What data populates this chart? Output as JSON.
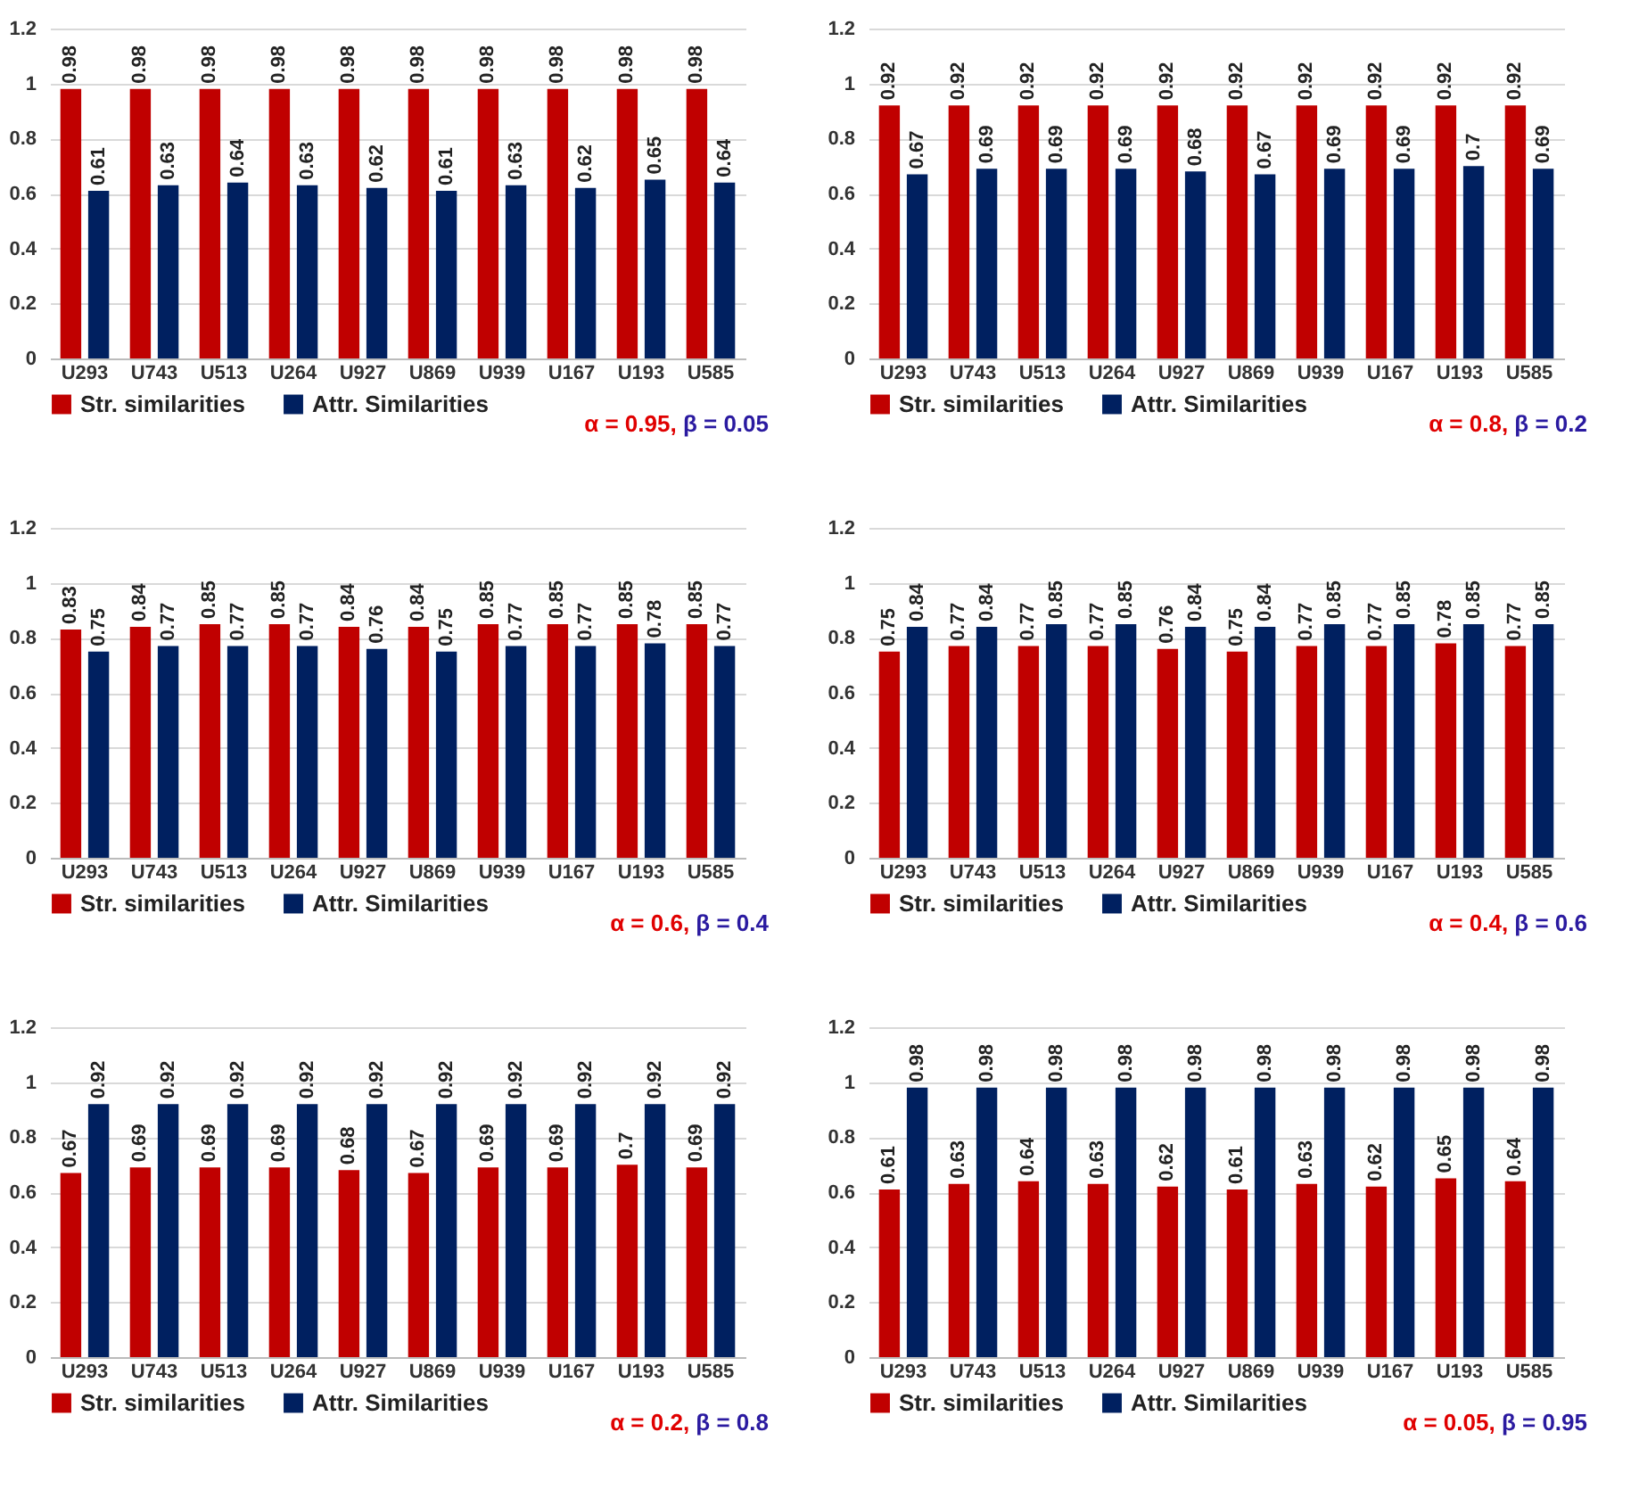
{
  "chart_data": [
    {
      "type": "bar",
      "categories": [
        "U293",
        "U743",
        "U513",
        "U264",
        "U927",
        "U869",
        "U939",
        "U167",
        "U193",
        "U585"
      ],
      "series": [
        {
          "name": "Str. similarities",
          "color": "#c00000",
          "values": [
            0.98,
            0.98,
            0.98,
            0.98,
            0.98,
            0.98,
            0.98,
            0.98,
            0.98,
            0.98
          ]
        },
        {
          "name": "Attr. Similarities",
          "color": "#002060",
          "values": [
            0.61,
            0.63,
            0.64,
            0.63,
            0.62,
            0.61,
            0.63,
            0.62,
            0.65,
            0.64
          ]
        }
      ],
      "ylim": [
        0,
        1.2
      ],
      "yticks": [
        0,
        0.2,
        0.4,
        0.6,
        0.8,
        1,
        1.2
      ],
      "grid": "y",
      "legend": "bottom",
      "data_labels": true,
      "annotations": [
        "α = 0.95, β = 0.05"
      ]
    },
    {
      "type": "bar",
      "categories": [
        "U293",
        "U743",
        "U513",
        "U264",
        "U927",
        "U869",
        "U939",
        "U167",
        "U193",
        "U585"
      ],
      "series": [
        {
          "name": "Str. similarities",
          "color": "#c00000",
          "values": [
            0.92,
            0.92,
            0.92,
            0.92,
            0.92,
            0.92,
            0.92,
            0.92,
            0.92,
            0.92
          ]
        },
        {
          "name": "Attr. Similarities",
          "color": "#002060",
          "values": [
            0.67,
            0.69,
            0.69,
            0.69,
            0.68,
            0.67,
            0.69,
            0.69,
            0.7,
            0.69
          ]
        }
      ],
      "ylim": [
        0,
        1.2
      ],
      "yticks": [
        0,
        0.2,
        0.4,
        0.6,
        0.8,
        1,
        1.2
      ],
      "grid": "y",
      "legend": "bottom",
      "data_labels": true,
      "annotations": [
        "α = 0.8, β = 0.2"
      ]
    },
    {
      "type": "bar",
      "categories": [
        "U293",
        "U743",
        "U513",
        "U264",
        "U927",
        "U869",
        "U939",
        "U167",
        "U193",
        "U585"
      ],
      "series": [
        {
          "name": "Str. similarities",
          "color": "#c00000",
          "values": [
            0.83,
            0.84,
            0.85,
            0.85,
            0.84,
            0.84,
            0.85,
            0.85,
            0.85,
            0.85
          ]
        },
        {
          "name": "Attr. Similarities",
          "color": "#002060",
          "values": [
            0.75,
            0.77,
            0.77,
            0.77,
            0.76,
            0.75,
            0.77,
            0.77,
            0.78,
            0.77
          ]
        }
      ],
      "ylim": [
        0,
        1.2
      ],
      "yticks": [
        0,
        0.2,
        0.4,
        0.6,
        0.8,
        1,
        1.2
      ],
      "grid": "y",
      "legend": "bottom",
      "data_labels": true,
      "annotations": [
        "α = 0.6, β = 0.4"
      ]
    },
    {
      "type": "bar",
      "categories": [
        "U293",
        "U743",
        "U513",
        "U264",
        "U927",
        "U869",
        "U939",
        "U167",
        "U193",
        "U585"
      ],
      "series": [
        {
          "name": "Str. similarities",
          "color": "#c00000",
          "values": [
            0.75,
            0.77,
            0.77,
            0.77,
            0.76,
            0.75,
            0.77,
            0.77,
            0.78,
            0.77
          ]
        },
        {
          "name": "Attr. Similarities",
          "color": "#002060",
          "values": [
            0.84,
            0.84,
            0.85,
            0.85,
            0.84,
            0.84,
            0.85,
            0.85,
            0.85,
            0.85
          ]
        }
      ],
      "ylim": [
        0,
        1.2
      ],
      "yticks": [
        0,
        0.2,
        0.4,
        0.6,
        0.8,
        1,
        1.2
      ],
      "grid": "y",
      "legend": "bottom",
      "data_labels": true,
      "annotations": [
        "α = 0.4, β = 0.6"
      ]
    },
    {
      "type": "bar",
      "categories": [
        "U293",
        "U743",
        "U513",
        "U264",
        "U927",
        "U869",
        "U939",
        "U167",
        "U193",
        "U585"
      ],
      "series": [
        {
          "name": "Str. similarities",
          "color": "#c00000",
          "values": [
            0.67,
            0.69,
            0.69,
            0.69,
            0.68,
            0.67,
            0.69,
            0.69,
            0.7,
            0.69
          ]
        },
        {
          "name": "Attr. Similarities",
          "color": "#002060",
          "values": [
            0.92,
            0.92,
            0.92,
            0.92,
            0.92,
            0.92,
            0.92,
            0.92,
            0.92,
            0.92
          ]
        }
      ],
      "ylim": [
        0,
        1.2
      ],
      "yticks": [
        0,
        0.2,
        0.4,
        0.6,
        0.8,
        1,
        1.2
      ],
      "grid": "y",
      "legend": "bottom",
      "data_labels": true,
      "annotations": [
        "α = 0.2, β = 0.8"
      ]
    },
    {
      "type": "bar",
      "categories": [
        "U293",
        "U743",
        "U513",
        "U264",
        "U927",
        "U869",
        "U939",
        "U167",
        "U193",
        "U585"
      ],
      "series": [
        {
          "name": "Str. similarities",
          "color": "#c00000",
          "values": [
            0.61,
            0.63,
            0.64,
            0.63,
            0.62,
            0.61,
            0.63,
            0.62,
            0.65,
            0.64
          ]
        },
        {
          "name": "Attr. Similarities",
          "color": "#002060",
          "values": [
            0.98,
            0.98,
            0.98,
            0.98,
            0.98,
            0.98,
            0.98,
            0.98,
            0.98,
            0.98
          ]
        }
      ],
      "ylim": [
        0,
        1.2
      ],
      "yticks": [
        0,
        0.2,
        0.4,
        0.6,
        0.8,
        1,
        1.2
      ],
      "grid": "y",
      "legend": "bottom",
      "data_labels": true,
      "annotations": [
        "α = 0.05, β = 0.95"
      ]
    }
  ]
}
